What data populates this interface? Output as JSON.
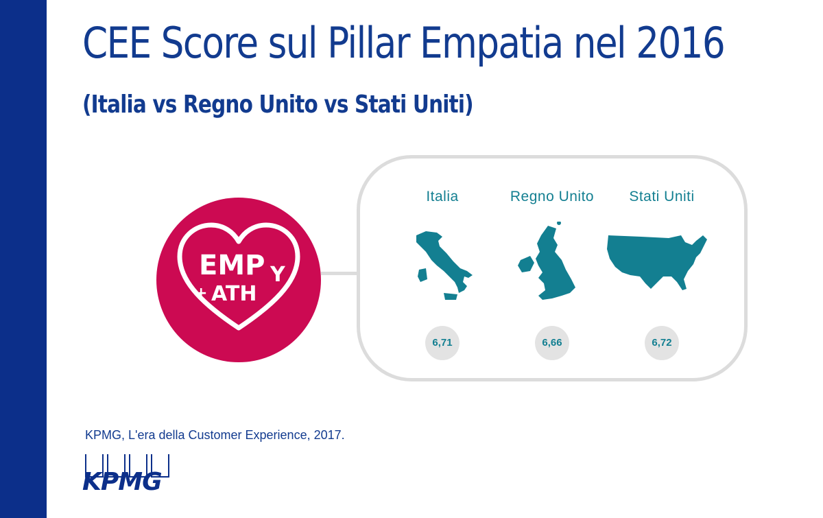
{
  "title": "CEE Score sul Pillar Empatia nel 2016",
  "subtitle": "(Italia vs Regno Unito vs Stati Uniti)",
  "badge": {
    "line1": "EMP",
    "line2a": "+",
    "line2b": "ATH",
    "line1b": "Y"
  },
  "countries": [
    {
      "name": "Italia",
      "score": "6,71",
      "icon": "italy-map-icon"
    },
    {
      "name": "Regno Unito",
      "score": "6,66",
      "icon": "uk-map-icon"
    },
    {
      "name": "Stati Uniti",
      "score": "6,72",
      "icon": "usa-map-icon"
    }
  ],
  "source": "KPMG, L'era della Customer Experience, 2017.",
  "logo": "KPMG",
  "colors": {
    "sidebar": "#0c2f8a",
    "title": "#123b8f",
    "badge": "#cc0a52",
    "teal": "#137f91",
    "panel_border": "#dcdcdc"
  }
}
